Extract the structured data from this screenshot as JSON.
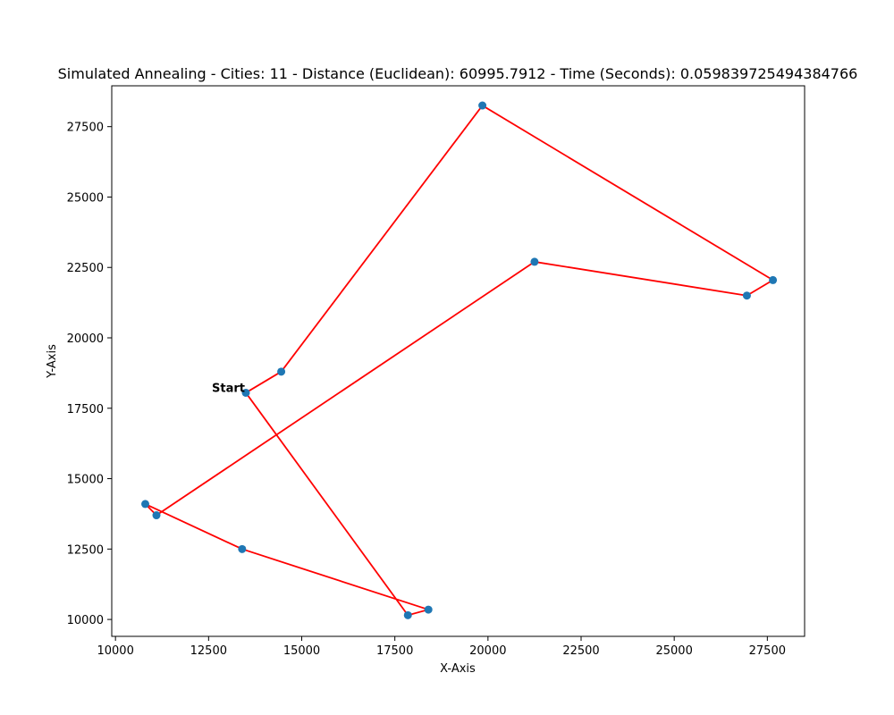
{
  "chart_data": {
    "type": "line",
    "title": "Simulated Annealing - Cities: 11 - Distance (Euclidean): 60995.7912 - Time (Seconds): 0.059839725494384766",
    "xlabel": "X-Axis",
    "ylabel": "Y-Axis",
    "xlim": [
      9900,
      28500
    ],
    "ylim": [
      9400,
      28950
    ],
    "x_ticks": [
      10000,
      12500,
      15000,
      17500,
      20000,
      22500,
      25000,
      27500
    ],
    "y_ticks": [
      10000,
      12500,
      15000,
      17500,
      20000,
      22500,
      25000,
      27500
    ],
    "route": {
      "x": [
        13500,
        14450,
        19850,
        27650,
        26950,
        21250,
        11100,
        10800,
        13400,
        18400,
        17850,
        13500
      ],
      "y": [
        18050,
        18800,
        28250,
        22050,
        21500,
        22700,
        13700,
        14100,
        12500,
        10350,
        10150,
        18050
      ]
    },
    "start_label": "Start",
    "grid": false,
    "colors": {
      "route": "#ff0000",
      "points": "#1f77b4"
    }
  }
}
